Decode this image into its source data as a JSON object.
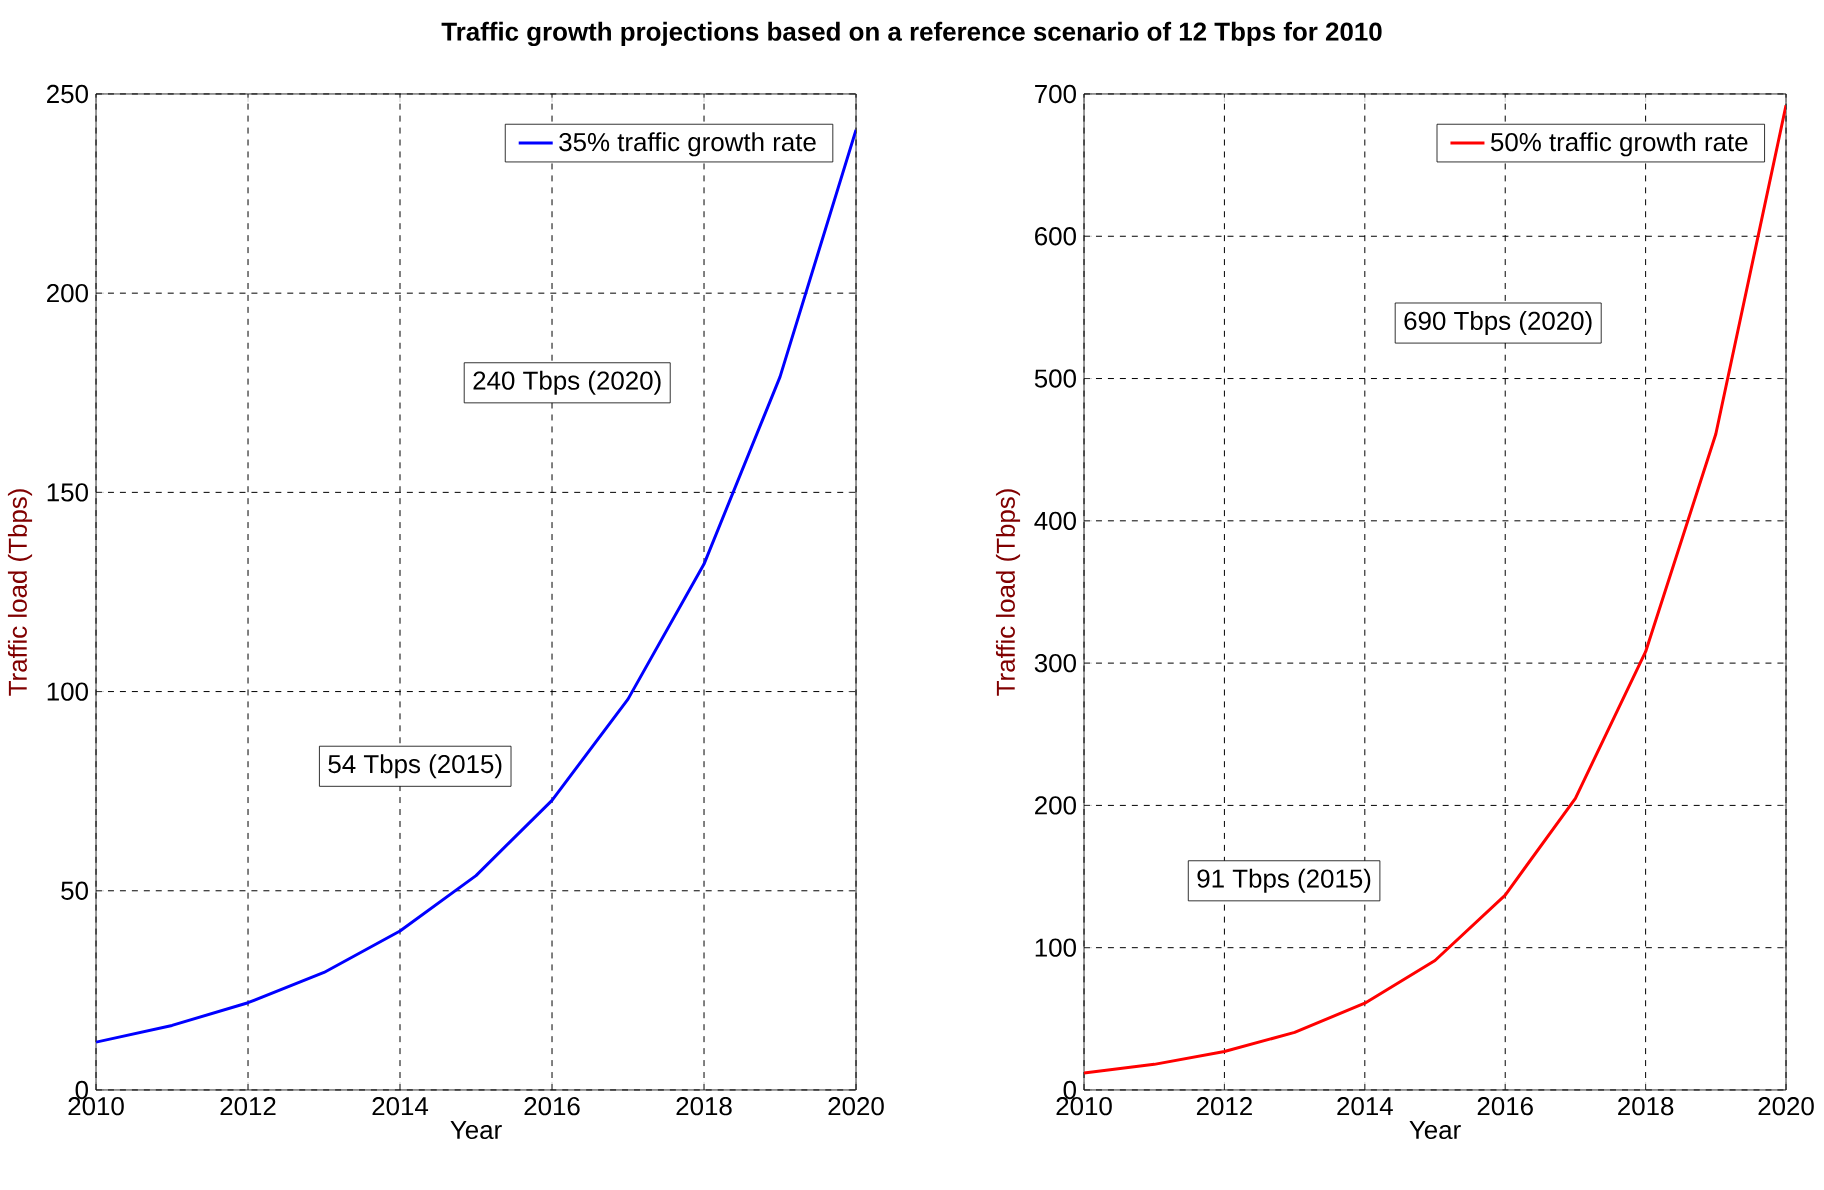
{
  "chart_data": [
    {
      "type": "line",
      "title": "Traffic growth projections based on a reference scenario of 12 Tbps for 2010",
      "xlabel": "Year",
      "ylabel": "Traffic load (Tbps)",
      "x": [
        2010,
        2011,
        2012,
        2013,
        2014,
        2015,
        2016,
        2017,
        2018,
        2019,
        2020
      ],
      "series": [
        {
          "name": "35% traffic growth rate",
          "color": "#0000ff",
          "values": [
            12,
            16.2,
            21.9,
            29.5,
            39.9,
            53.8,
            72.7,
            98.1,
            132,
            179,
            241
          ]
        }
      ],
      "xlim": [
        2010,
        2020
      ],
      "xticks": [
        2010,
        2012,
        2014,
        2016,
        2018,
        2020
      ],
      "ylim": [
        0,
        250
      ],
      "yticks": [
        0,
        50,
        100,
        150,
        200,
        250
      ],
      "grid": true,
      "legend": "top right",
      "annotations": [
        "54 Tbps (2015)",
        "240 Tbps (2020)"
      ]
    },
    {
      "type": "line",
      "xlabel": "Year",
      "ylabel": "Traffic load (Tbps)",
      "x": [
        2010,
        2011,
        2012,
        2013,
        2014,
        2015,
        2016,
        2017,
        2018,
        2019,
        2020
      ],
      "series": [
        {
          "name": "50% traffic growth rate",
          "color": "#ff0000",
          "values": [
            12,
            18,
            27,
            40.5,
            61,
            91,
            137,
            205,
            308,
            461,
            692
          ]
        }
      ],
      "xlim": [
        2010,
        2020
      ],
      "xticks": [
        2010,
        2012,
        2014,
        2016,
        2018,
        2020
      ],
      "ylim": [
        0,
        700
      ],
      "yticks": [
        0,
        100,
        200,
        300,
        400,
        500,
        600,
        700
      ],
      "grid": true,
      "legend": "top right",
      "annotations": [
        "91 Tbps (2015)",
        "690 Tbps (2020)"
      ]
    }
  ]
}
